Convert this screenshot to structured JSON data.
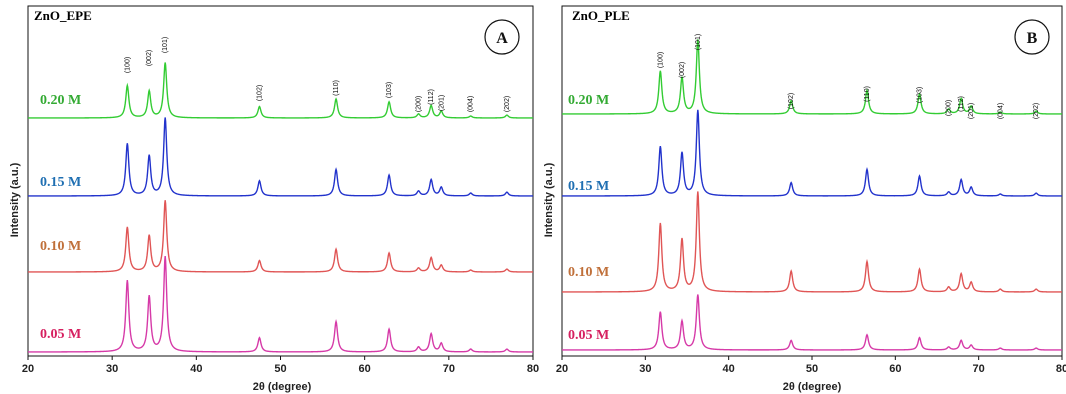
{
  "chart_data": [
    {
      "type": "line",
      "title": "ZnO_EPE",
      "title_color": "#1f6fb2",
      "badge": "A",
      "xlabel": "2θ (degree)",
      "ylabel": "Intensity (a.u.)",
      "xlim": [
        20,
        80
      ],
      "xticks": [
        "20",
        "30",
        "40",
        "50",
        "60",
        "70",
        "80"
      ],
      "peak_labels": [
        {
          "label": "(100)",
          "x": 31.8
        },
        {
          "label": "(002)",
          "x": 34.4
        },
        {
          "label": "(101)",
          "x": 36.3
        },
        {
          "label": "(102)",
          "x": 47.5
        },
        {
          "label": "(110)",
          "x": 56.6
        },
        {
          "label": "(103)",
          "x": 62.9
        },
        {
          "label": "(200)",
          "x": 66.4
        },
        {
          "label": "(112)",
          "x": 67.9
        },
        {
          "label": "(201)",
          "x": 69.1
        },
        {
          "label": "(004)",
          "x": 72.6
        },
        {
          "label": "(202)",
          "x": 76.9
        }
      ],
      "series": [
        {
          "name": "0.20 M",
          "color": "#33cc33",
          "label_color": "#33aa33",
          "peaks": [
            [
              31.8,
              0.34
            ],
            [
              34.4,
              0.28
            ],
            [
              36.3,
              0.58
            ],
            [
              47.5,
              0.12
            ],
            [
              56.6,
              0.2
            ],
            [
              62.9,
              0.17
            ],
            [
              66.4,
              0.04
            ],
            [
              67.9,
              0.13
            ],
            [
              69.1,
              0.07
            ],
            [
              72.6,
              0.02
            ],
            [
              76.9,
              0.03
            ]
          ]
        },
        {
          "name": "0.15 M",
          "color": "#2233cc",
          "label_color": "#1f6fb2",
          "peaks": [
            [
              31.8,
              0.55
            ],
            [
              34.4,
              0.42
            ],
            [
              36.3,
              0.82
            ],
            [
              47.5,
              0.16
            ],
            [
              56.6,
              0.28
            ],
            [
              62.9,
              0.22
            ],
            [
              66.4,
              0.05
            ],
            [
              67.9,
              0.17
            ],
            [
              69.1,
              0.09
            ],
            [
              72.6,
              0.03
            ],
            [
              76.9,
              0.04
            ]
          ]
        },
        {
          "name": "0.10 M",
          "color": "#e05555",
          "label_color": "#c0703a",
          "peaks": [
            [
              31.8,
              0.47
            ],
            [
              34.4,
              0.38
            ],
            [
              36.3,
              0.75
            ],
            [
              47.5,
              0.12
            ],
            [
              56.6,
              0.24
            ],
            [
              62.9,
              0.2
            ],
            [
              66.4,
              0.04
            ],
            [
              67.9,
              0.15
            ],
            [
              69.1,
              0.07
            ],
            [
              72.6,
              0.02
            ],
            [
              76.9,
              0.03
            ]
          ]
        },
        {
          "name": "0.05 M",
          "color": "#d63aa8",
          "label_color": "#d62060",
          "peaks": [
            [
              31.8,
              0.75
            ],
            [
              34.4,
              0.58
            ],
            [
              36.3,
              1.0
            ],
            [
              47.5,
              0.15
            ],
            [
              56.6,
              0.32
            ],
            [
              62.9,
              0.24
            ],
            [
              66.4,
              0.05
            ],
            [
              67.9,
              0.19
            ],
            [
              69.1,
              0.09
            ],
            [
              72.6,
              0.03
            ],
            [
              76.9,
              0.03
            ]
          ]
        }
      ]
    },
    {
      "type": "line",
      "title": "ZnO_PLE",
      "title_color": "#d0202a",
      "badge": "B",
      "xlabel": "2θ (degree)",
      "ylabel": "Intensity (a.u.)",
      "xlim": [
        20,
        80
      ],
      "xticks": [
        "20",
        "30",
        "40",
        "50",
        "60",
        "70",
        "80"
      ],
      "peak_labels": [
        {
          "label": "(100)",
          "x": 31.8
        },
        {
          "label": "(002)",
          "x": 34.4
        },
        {
          "label": "(101)",
          "x": 36.3
        },
        {
          "label": "(102)",
          "x": 47.5
        },
        {
          "label": "(110)",
          "x": 56.6
        },
        {
          "label": "(103)",
          "x": 62.9
        },
        {
          "label": "(200)",
          "x": 66.4
        },
        {
          "label": "(112)",
          "x": 67.9
        },
        {
          "label": "(201)",
          "x": 69.1
        },
        {
          "label": "(004)",
          "x": 72.6
        },
        {
          "label": "(202)",
          "x": 76.9
        }
      ],
      "series": [
        {
          "name": "0.20 M",
          "color": "#33cc33",
          "label_color": "#33aa33",
          "peaks": [
            [
              31.8,
              0.45
            ],
            [
              34.4,
              0.38
            ],
            [
              36.3,
              0.78
            ],
            [
              47.5,
              0.14
            ],
            [
              56.6,
              0.25
            ],
            [
              62.9,
              0.21
            ],
            [
              66.4,
              0.05
            ],
            [
              67.9,
              0.16
            ],
            [
              69.1,
              0.08
            ],
            [
              72.6,
              0.02
            ],
            [
              76.9,
              0.03
            ]
          ]
        },
        {
          "name": "0.15 M",
          "color": "#2233cc",
          "label_color": "#1f6fb2",
          "peaks": [
            [
              31.8,
              0.52
            ],
            [
              34.4,
              0.45
            ],
            [
              36.3,
              0.9
            ],
            [
              47.5,
              0.14
            ],
            [
              56.6,
              0.28
            ],
            [
              62.9,
              0.21
            ],
            [
              66.4,
              0.04
            ],
            [
              67.9,
              0.17
            ],
            [
              69.1,
              0.09
            ],
            [
              72.6,
              0.02
            ],
            [
              76.9,
              0.03
            ]
          ]
        },
        {
          "name": "0.10 M",
          "color": "#e05555",
          "label_color": "#c0703a",
          "peaks": [
            [
              31.8,
              0.72
            ],
            [
              34.4,
              0.55
            ],
            [
              36.3,
              1.05
            ],
            [
              47.5,
              0.22
            ],
            [
              56.6,
              0.32
            ],
            [
              62.9,
              0.24
            ],
            [
              66.4,
              0.05
            ],
            [
              67.9,
              0.19
            ],
            [
              69.1,
              0.1
            ],
            [
              72.6,
              0.03
            ],
            [
              76.9,
              0.03
            ]
          ]
        },
        {
          "name": "0.05 M",
          "color": "#d63aa8",
          "label_color": "#d62060",
          "peaks": [
            [
              31.8,
              0.4
            ],
            [
              34.4,
              0.3
            ],
            [
              36.3,
              0.58
            ],
            [
              47.5,
              0.1
            ],
            [
              56.6,
              0.16
            ],
            [
              62.9,
              0.13
            ],
            [
              66.4,
              0.03
            ],
            [
              67.9,
              0.1
            ],
            [
              69.1,
              0.05
            ],
            [
              72.6,
              0.02
            ],
            [
              76.9,
              0.02
            ]
          ]
        }
      ]
    }
  ]
}
